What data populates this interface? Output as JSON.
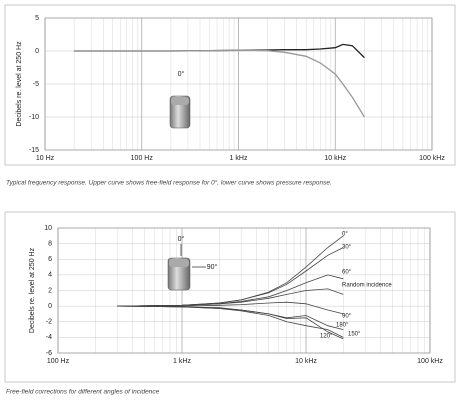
{
  "chart_data": [
    {
      "type": "line",
      "log_x": true,
      "grid": true,
      "ylabel": "Decibels re. level at 250 Hz",
      "caption": "Typical frequency response. Upper curve shows free-field response for 0°, lower curve shows pressure response.",
      "annotations": [
        "0°"
      ],
      "xlim": [
        10,
        100000
      ],
      "xticks": [
        {
          "value": 10,
          "label": "10 Hz"
        },
        {
          "value": 100,
          "label": "100 Hz"
        },
        {
          "value": 1000,
          "label": "1 kHz"
        },
        {
          "value": 10000,
          "label": "10 kHz"
        },
        {
          "value": 100000,
          "label": "100 kHz"
        }
      ],
      "ylim": [
        -15,
        5
      ],
      "yticks": [
        5,
        0,
        -5,
        -10,
        -15
      ],
      "x": [
        20,
        50,
        100,
        200,
        500,
        1000,
        2000,
        3000,
        5000,
        7000,
        10000,
        12000,
        15000,
        20000
      ],
      "series": [
        {
          "color": "#222222",
          "values": [
            0,
            0,
            0,
            0,
            0.05,
            0.1,
            0.15,
            0.2,
            0.2,
            0.3,
            0.5,
            1,
            0.8,
            -1
          ]
        },
        {
          "color": "#999999",
          "values": [
            0,
            0,
            0,
            0,
            0.05,
            0.1,
            0.05,
            -0.2,
            -0.8,
            -1.8,
            -3.5,
            -5,
            -7,
            -10
          ]
        }
      ]
    },
    {
      "type": "line",
      "log_x": true,
      "grid": true,
      "ylabel": "Decibels re. level at 250 Hz",
      "caption": "Free-field corrections for different angles of incidence",
      "annotations": [
        "0°",
        "90°"
      ],
      "xlim": [
        100,
        100000
      ],
      "xticks": [
        {
          "value": 100,
          "label": "100 Hz"
        },
        {
          "value": 1000,
          "label": "1 kHz"
        },
        {
          "value": 10000,
          "label": "10 kHz"
        },
        {
          "value": 100000,
          "label": "100 kHz"
        }
      ],
      "ylim": [
        -6,
        10
      ],
      "yticks": [
        10,
        8,
        6,
        4,
        2,
        0,
        -2,
        -4,
        -6
      ],
      "x": [
        300,
        1000,
        2000,
        3000,
        5000,
        7000,
        10000,
        15000,
        20000
      ],
      "series": [
        {
          "name": "0°",
          "color": "#444444",
          "values": [
            0,
            0.1,
            0.4,
            0.8,
            1.8,
            3,
            5,
            7.5,
            9
          ]
        },
        {
          "name": "30°",
          "color": "#444444",
          "values": [
            0,
            0.1,
            0.4,
            0.8,
            1.7,
            2.8,
            4.5,
            6.5,
            7.5
          ]
        },
        {
          "name": "60°",
          "color": "#444444",
          "values": [
            0,
            0.1,
            0.3,
            0.6,
            1.2,
            2,
            3,
            4,
            3.5
          ]
        },
        {
          "name": "Random incidence",
          "color": "#444444",
          "values": [
            0,
            0.1,
            0.3,
            0.5,
            1,
            1.5,
            2,
            2.2,
            1.5
          ]
        },
        {
          "name": "90°",
          "color": "#444444",
          "values": [
            0,
            0,
            0.1,
            0.2,
            0.4,
            0.5,
            0.3,
            -0.5,
            -1
          ]
        },
        {
          "name": "180°",
          "color": "#444444",
          "values": [
            0,
            -0.1,
            -0.2,
            -0.5,
            -1,
            -1.5,
            -1.2,
            -2.5,
            -3
          ]
        },
        {
          "name": "120°",
          "color": "#444444",
          "values": [
            0,
            -0.1,
            -0.3,
            -0.6,
            -1.2,
            -2,
            -2.5,
            -3,
            -4
          ]
        },
        {
          "name": "150°",
          "color": "#444444",
          "values": [
            0,
            -0.1,
            -0.3,
            -0.5,
            -1,
            -1.6,
            -1.5,
            -3.3,
            -4.2
          ]
        }
      ]
    }
  ]
}
